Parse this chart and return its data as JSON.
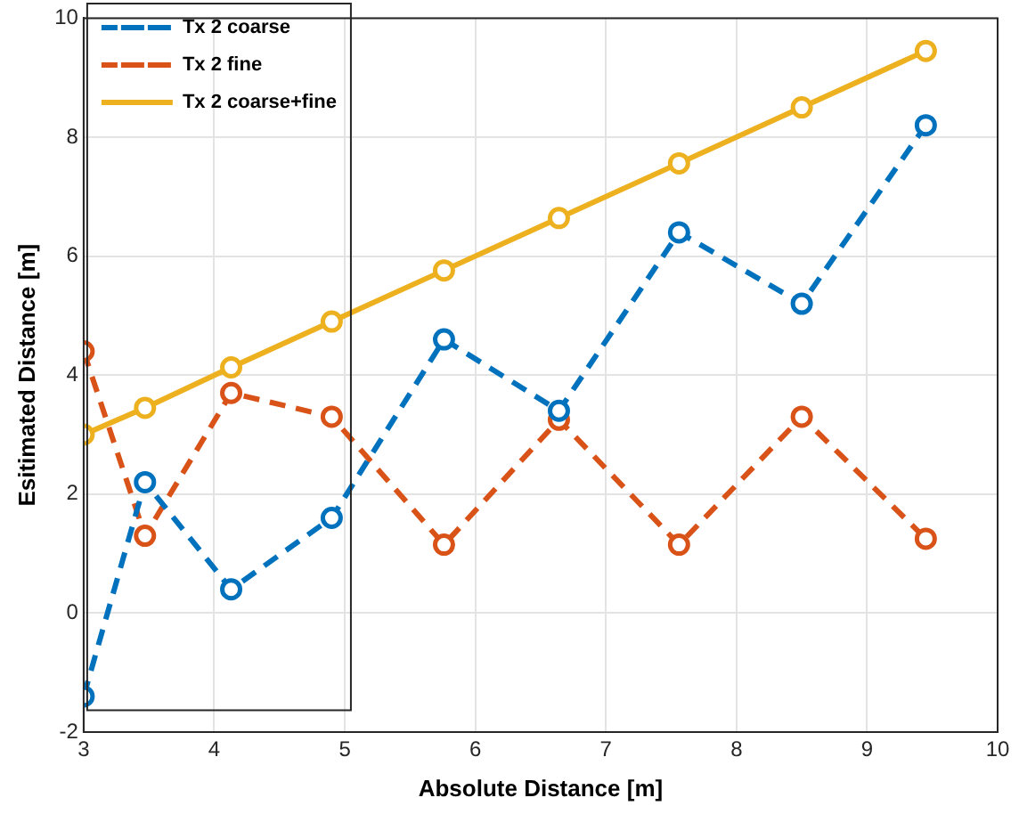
{
  "chart_data": {
    "type": "line",
    "xlabel": "Absolute Distance [m]",
    "ylabel": "Esitimated Distance [m]",
    "x": [
      3.0,
      3.47,
      4.13,
      4.9,
      5.76,
      6.64,
      7.56,
      8.5,
      9.45
    ],
    "series": [
      {
        "name": "Tx 2 coarse",
        "color": "#0072bd",
        "line_style": "dashed",
        "values": [
          -1.4,
          2.2,
          0.4,
          1.6,
          4.6,
          3.4,
          6.4,
          5.2,
          8.2
        ]
      },
      {
        "name": "Tx 2 fine",
        "color": "#d95319",
        "line_style": "dashed",
        "values": [
          4.4,
          1.3,
          3.7,
          3.3,
          1.15,
          3.25,
          1.15,
          3.3,
          1.25
        ]
      },
      {
        "name": "Tx 2 coarse+fine",
        "color": "#edb120",
        "line_style": "solid",
        "values": [
          3.0,
          3.45,
          4.13,
          4.9,
          5.76,
          6.64,
          7.56,
          8.5,
          9.45
        ]
      }
    ],
    "xlim": [
      3,
      10
    ],
    "xticks": [
      3,
      4,
      5,
      6,
      7,
      8,
      9,
      10
    ],
    "ylim": [
      -2,
      10
    ],
    "yticks": [
      -2,
      0,
      2,
      4,
      6,
      8,
      10
    ],
    "grid": true,
    "legend": "top left",
    "marker": "circle"
  }
}
